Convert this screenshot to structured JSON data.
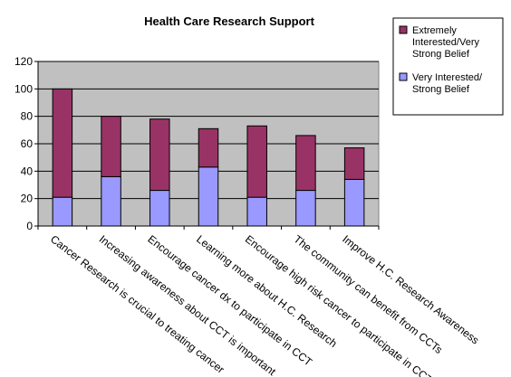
{
  "chart_data": {
    "type": "bar",
    "stacked": true,
    "title": "Health Care Research Support",
    "xlabel": "",
    "ylabel": "",
    "ylim": [
      0,
      120
    ],
    "yticks": [
      0,
      20,
      40,
      60,
      80,
      100,
      120
    ],
    "grid": true,
    "legend_position": "top-right",
    "plot_background": "#c0c0c0",
    "categories": [
      "Cancer Research is crucial to treating cancer",
      "Increasing awareness about CCT is important",
      "Encourage cancer dx to participate in CCT",
      "Learning more about H.C. Research",
      "Encourage high risk cancer to participate in CCT",
      "The community can benefit from CCTs",
      "Improve H.C. Research Awareness"
    ],
    "series": [
      {
        "name": "Very Interested/ Strong Belief",
        "color": "#9999ff",
        "values": [
          21,
          36,
          26,
          43,
          21,
          26,
          34
        ]
      },
      {
        "name": "Extremely Interested/Very Strong Belief",
        "color": "#993366",
        "values": [
          79,
          44,
          52,
          28,
          52,
          40,
          23
        ]
      }
    ],
    "legend": [
      {
        "label": "Extremely Interested/Very Strong Belief",
        "lines": [
          "Extremely",
          "Interested/Very",
          "Strong Belief"
        ],
        "color": "#993366"
      },
      {
        "label": "Very Interested/ Strong Belief",
        "lines": [
          "Very Interested/",
          "Strong Belief"
        ],
        "color": "#9999ff"
      }
    ]
  }
}
